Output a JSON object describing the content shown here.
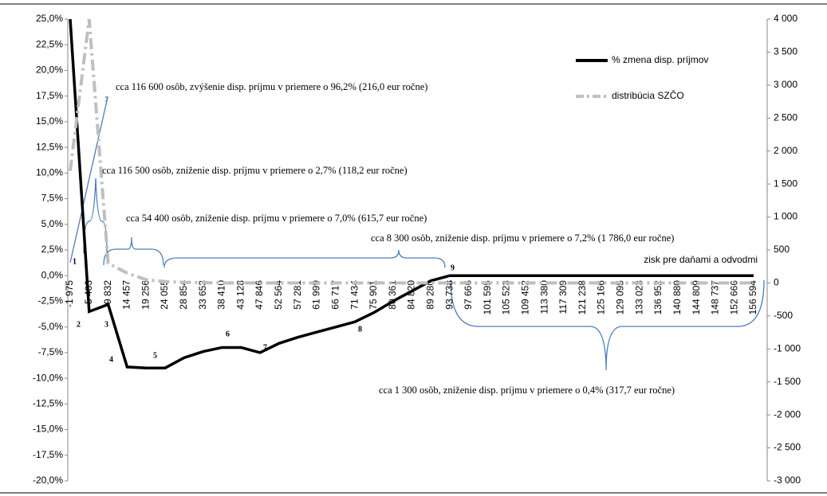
{
  "chart_data": {
    "type": "line",
    "categories": [
      "-1 975",
      "5 403",
      "9 832",
      "14 457",
      "19 256",
      "24 055",
      "28 854",
      "33 653",
      "38 410",
      "43 128",
      "47 846",
      "52 564",
      "57 281",
      "61 999",
      "66 717",
      "71 434",
      "75 901",
      "80 361",
      "84 820",
      "89 280",
      "93 738",
      "97 666",
      "101 595",
      "105 523",
      "109 452",
      "113 380",
      "117 309",
      "121 238",
      "125 166",
      "129 095",
      "133 023",
      "136 952",
      "140 880",
      "144 809",
      "148 737",
      "152 666",
      "156 594"
    ],
    "series": [
      {
        "name": "% zmena disp. príjmov",
        "color": "#000000",
        "values": [
          25,
          -3.5,
          -2.8,
          -8.9,
          -9,
          -9,
          -8.0,
          -7.4,
          -7.0,
          -7.0,
          -7.5,
          -6.6,
          -6.0,
          -5.5,
          -5.0,
          -4.5,
          -3.6,
          -2.5,
          -1.5,
          -0.5,
          0,
          0,
          0,
          0,
          0,
          0,
          0,
          0,
          0,
          0,
          0,
          0,
          0,
          0,
          0,
          0,
          0
        ]
      },
      {
        "name": "distribúcia SZČO",
        "color": "#bfbfbf",
        "axis": "y2",
        "values": [
          1700,
          4000,
          300,
          150,
          50,
          20,
          10,
          5,
          0,
          0,
          0,
          0,
          0,
          0,
          0,
          0,
          0,
          0,
          0,
          0,
          0,
          0,
          0,
          0,
          0,
          0,
          0,
          0,
          0,
          0,
          0,
          0,
          0,
          0,
          0,
          0,
          0
        ]
      }
    ],
    "ylim": [
      -20,
      25
    ],
    "yticks": [
      {
        "value": 25,
        "label": "25,0%"
      },
      {
        "value": 22.5,
        "label": "22,5%"
      },
      {
        "value": 20,
        "label": "20,0%"
      },
      {
        "value": 17.5,
        "label": "17,5%"
      },
      {
        "value": 15,
        "label": "15,0%"
      },
      {
        "value": 12.5,
        "label": "12,5%"
      },
      {
        "value": 10,
        "label": "10,0%"
      },
      {
        "value": 7.5,
        "label": "7,5%"
      },
      {
        "value": 5,
        "label": "5,0%"
      },
      {
        "value": 2.5,
        "label": "2,5%"
      },
      {
        "value": 0,
        "label": "0,0%"
      },
      {
        "value": -2.5,
        "label": "-2,5%"
      },
      {
        "value": -5,
        "label": "-5,0%"
      },
      {
        "value": -7.5,
        "label": "-7,5%"
      },
      {
        "value": -10,
        "label": "-10,0%"
      },
      {
        "value": -12.5,
        "label": "-12,5%"
      },
      {
        "value": -15,
        "label": "-15,0%"
      },
      {
        "value": -17.5,
        "label": "-17,5%"
      },
      {
        "value": -20,
        "label": "-20,0%"
      }
    ],
    "y2lim": [
      -3000,
      4000
    ],
    "y2ticks": [
      {
        "value": 4000,
        "label": "4 000"
      },
      {
        "value": 3500,
        "label": "3 500"
      },
      {
        "value": 3000,
        "label": "3 000"
      },
      {
        "value": 2500,
        "label": "2 500"
      },
      {
        "value": 2000,
        "label": "2 000"
      },
      {
        "value": 1500,
        "label": "1 500"
      },
      {
        "value": 1000,
        "label": "1 000"
      },
      500,
      0,
      -500,
      {
        "value": -1000,
        "label": "-1 000"
      },
      {
        "value": -1500,
        "label": "-1 500"
      },
      {
        "value": -2000,
        "label": "-2 000"
      },
      {
        "value": -2500,
        "label": "-2 500"
      },
      {
        "value": -3000,
        "label": "-3 000"
      }
    ],
    "xlabel": "zisk pre daňami a odvodmi",
    "annotations": [
      "cca 116 600 osôb, zvýšenie disp. príjmu v priemere o 96,2% (216,0 eur ročne)",
      "cca 116 500 osôb, zníženie disp. príjmu v priemere o 2,7% (118,2 eur ročne)",
      "cca 54 400 osôb, zníženie disp. príjmu v priemere o 7,0% (615,7 eur ročne)",
      "cca 8 300 osôb, zníženie disp. príjmu v priemere o 7,2% (1 786,0 eur ročne)",
      "cca 1 300 osôb, zníženie disp. príjmu v priemere o 0,4% (317,7 eur ročne)"
    ],
    "markers": [
      "1",
      "2",
      "3",
      "4",
      "5",
      "6",
      "7",
      "8",
      "9"
    ]
  }
}
